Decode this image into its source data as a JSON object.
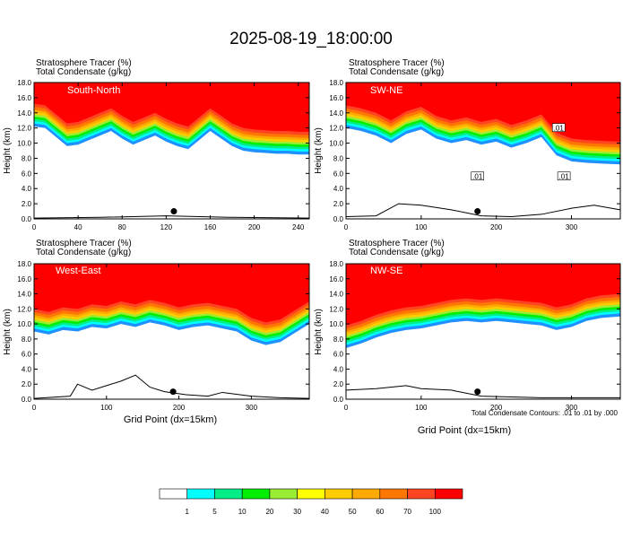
{
  "title": "2025-08-19_18:00:00",
  "footnote": "Total Condensate Contours: .01 to .01 by .000",
  "colors": [
    "#ffffff",
    "#1e90ff",
    "#00ffff",
    "#00ee88",
    "#00ee00",
    "#99ee33",
    "#ffff00",
    "#ffcc00",
    "#ffaa00",
    "#ff7700",
    "#ff4422",
    "#ff0000"
  ],
  "chart_data": [
    {
      "type": "heatmap",
      "panel": "South-North",
      "title_line1": "Stratosphere Tracer   (%)",
      "title_line2": "Total Condensate   (g/kg)",
      "ylabel": "Height (km)",
      "xlabel": "",
      "xlim": [
        0,
        250
      ],
      "ylim": [
        0,
        18
      ],
      "xticks": [
        "0",
        "40",
        "80",
        "120",
        "160",
        "200",
        "240"
      ],
      "yticks": [
        "0.0",
        "2.0",
        "4.0",
        "6.0",
        "8.0",
        "10.0",
        "12.0",
        "14.0",
        "16.0",
        "18.0"
      ],
      "tropopause_km": {
        "x": [
          0,
          10,
          20,
          30,
          40,
          50,
          60,
          70,
          80,
          90,
          100,
          110,
          120,
          130,
          140,
          150,
          160,
          170,
          180,
          190,
          200,
          210,
          220,
          230,
          240,
          250
        ],
        "y": [
          15.2,
          15.0,
          13.8,
          12.6,
          12.8,
          13.4,
          14.0,
          14.6,
          13.6,
          12.8,
          13.4,
          14.0,
          13.2,
          12.6,
          12.2,
          13.4,
          14.6,
          13.6,
          12.6,
          12.0,
          11.8,
          11.7,
          11.6,
          11.6,
          11.5,
          11.5
        ]
      },
      "dot": {
        "x": 127,
        "y": 1.0
      }
    },
    {
      "type": "heatmap",
      "panel": "SW-NE",
      "title_line1": "Stratosphere Tracer   (%)",
      "title_line2": "Total Condensate   (g/kg)",
      "ylabel": "Height (km)",
      "xlabel": "",
      "xlim": [
        0,
        365
      ],
      "ylim": [
        0,
        18
      ],
      "xticks": [
        "0",
        "100",
        "200",
        "300"
      ],
      "yticks": [
        "0.0",
        "2.0",
        "4.0",
        "6.0",
        "8.0",
        "10.0",
        "12.0",
        "14.0",
        "16.0",
        "18.0"
      ],
      "contour_labels": [
        ".01",
        ".01",
        ".01"
      ],
      "tropopause_km": {
        "x": [
          0,
          20,
          40,
          60,
          80,
          100,
          120,
          140,
          160,
          180,
          200,
          220,
          240,
          260,
          280,
          300,
          320,
          340,
          365
        ],
        "y": [
          15.0,
          14.6,
          14.0,
          13.0,
          14.2,
          14.8,
          13.6,
          13.0,
          13.4,
          12.8,
          13.2,
          12.4,
          13.0,
          13.8,
          11.4,
          10.6,
          10.4,
          10.3,
          10.2
        ]
      },
      "dot": {
        "x": 175,
        "y": 1.0
      }
    },
    {
      "type": "heatmap",
      "panel": "West-East",
      "title_line1": "Stratosphere Tracer   (%)",
      "title_line2": "Total Condensate   (g/kg)",
      "ylabel": "Height (km)",
      "xlabel": "Grid Point (dx=15km)",
      "xlim": [
        0,
        380
      ],
      "ylim": [
        0,
        18
      ],
      "xticks": [
        "0",
        "100",
        "200",
        "300"
      ],
      "yticks": [
        "0.0",
        "2.0",
        "4.0",
        "6.0",
        "8.0",
        "10.0",
        "12.0",
        "14.0",
        "16.0",
        "18.0"
      ],
      "tropopause_km": {
        "x": [
          0,
          20,
          40,
          60,
          80,
          100,
          120,
          140,
          160,
          180,
          200,
          220,
          240,
          260,
          280,
          300,
          320,
          340,
          360,
          380
        ],
        "y": [
          12.0,
          11.6,
          12.2,
          12.0,
          12.6,
          12.4,
          13.0,
          12.6,
          13.2,
          12.8,
          12.2,
          12.6,
          12.8,
          12.4,
          12.0,
          10.8,
          10.2,
          10.6,
          11.8,
          13.0
        ]
      },
      "dot": {
        "x": 192,
        "y": 1.0
      }
    },
    {
      "type": "heatmap",
      "panel": "NW-SE",
      "title_line1": "Stratosphere Tracer   (%)",
      "title_line2": "Total Condensate   (g/kg)",
      "ylabel": "Height (km)",
      "xlabel": "Grid Point (dx=15km)",
      "xlim": [
        0,
        365
      ],
      "ylim": [
        0,
        18
      ],
      "xticks": [
        "0",
        "100",
        "200",
        "300"
      ],
      "yticks": [
        "0.0",
        "2.0",
        "4.0",
        "6.0",
        "8.0",
        "10.0",
        "12.0",
        "14.0",
        "16.0",
        "18.0"
      ],
      "tropopause_km": {
        "x": [
          0,
          20,
          40,
          60,
          80,
          100,
          120,
          140,
          160,
          180,
          200,
          220,
          240,
          260,
          280,
          300,
          320,
          340,
          365
        ],
        "y": [
          9.8,
          10.4,
          11.2,
          11.8,
          12.2,
          12.4,
          12.8,
          13.2,
          13.4,
          13.2,
          13.4,
          13.2,
          13.0,
          12.8,
          12.2,
          12.6,
          13.4,
          13.8,
          14.0
        ]
      },
      "dot": {
        "x": 175,
        "y": 1.0
      }
    }
  ],
  "colorbar": {
    "labels": [
      "1",
      "5",
      "10",
      "20",
      "30",
      "40",
      "50",
      "60",
      "70",
      "100"
    ]
  }
}
